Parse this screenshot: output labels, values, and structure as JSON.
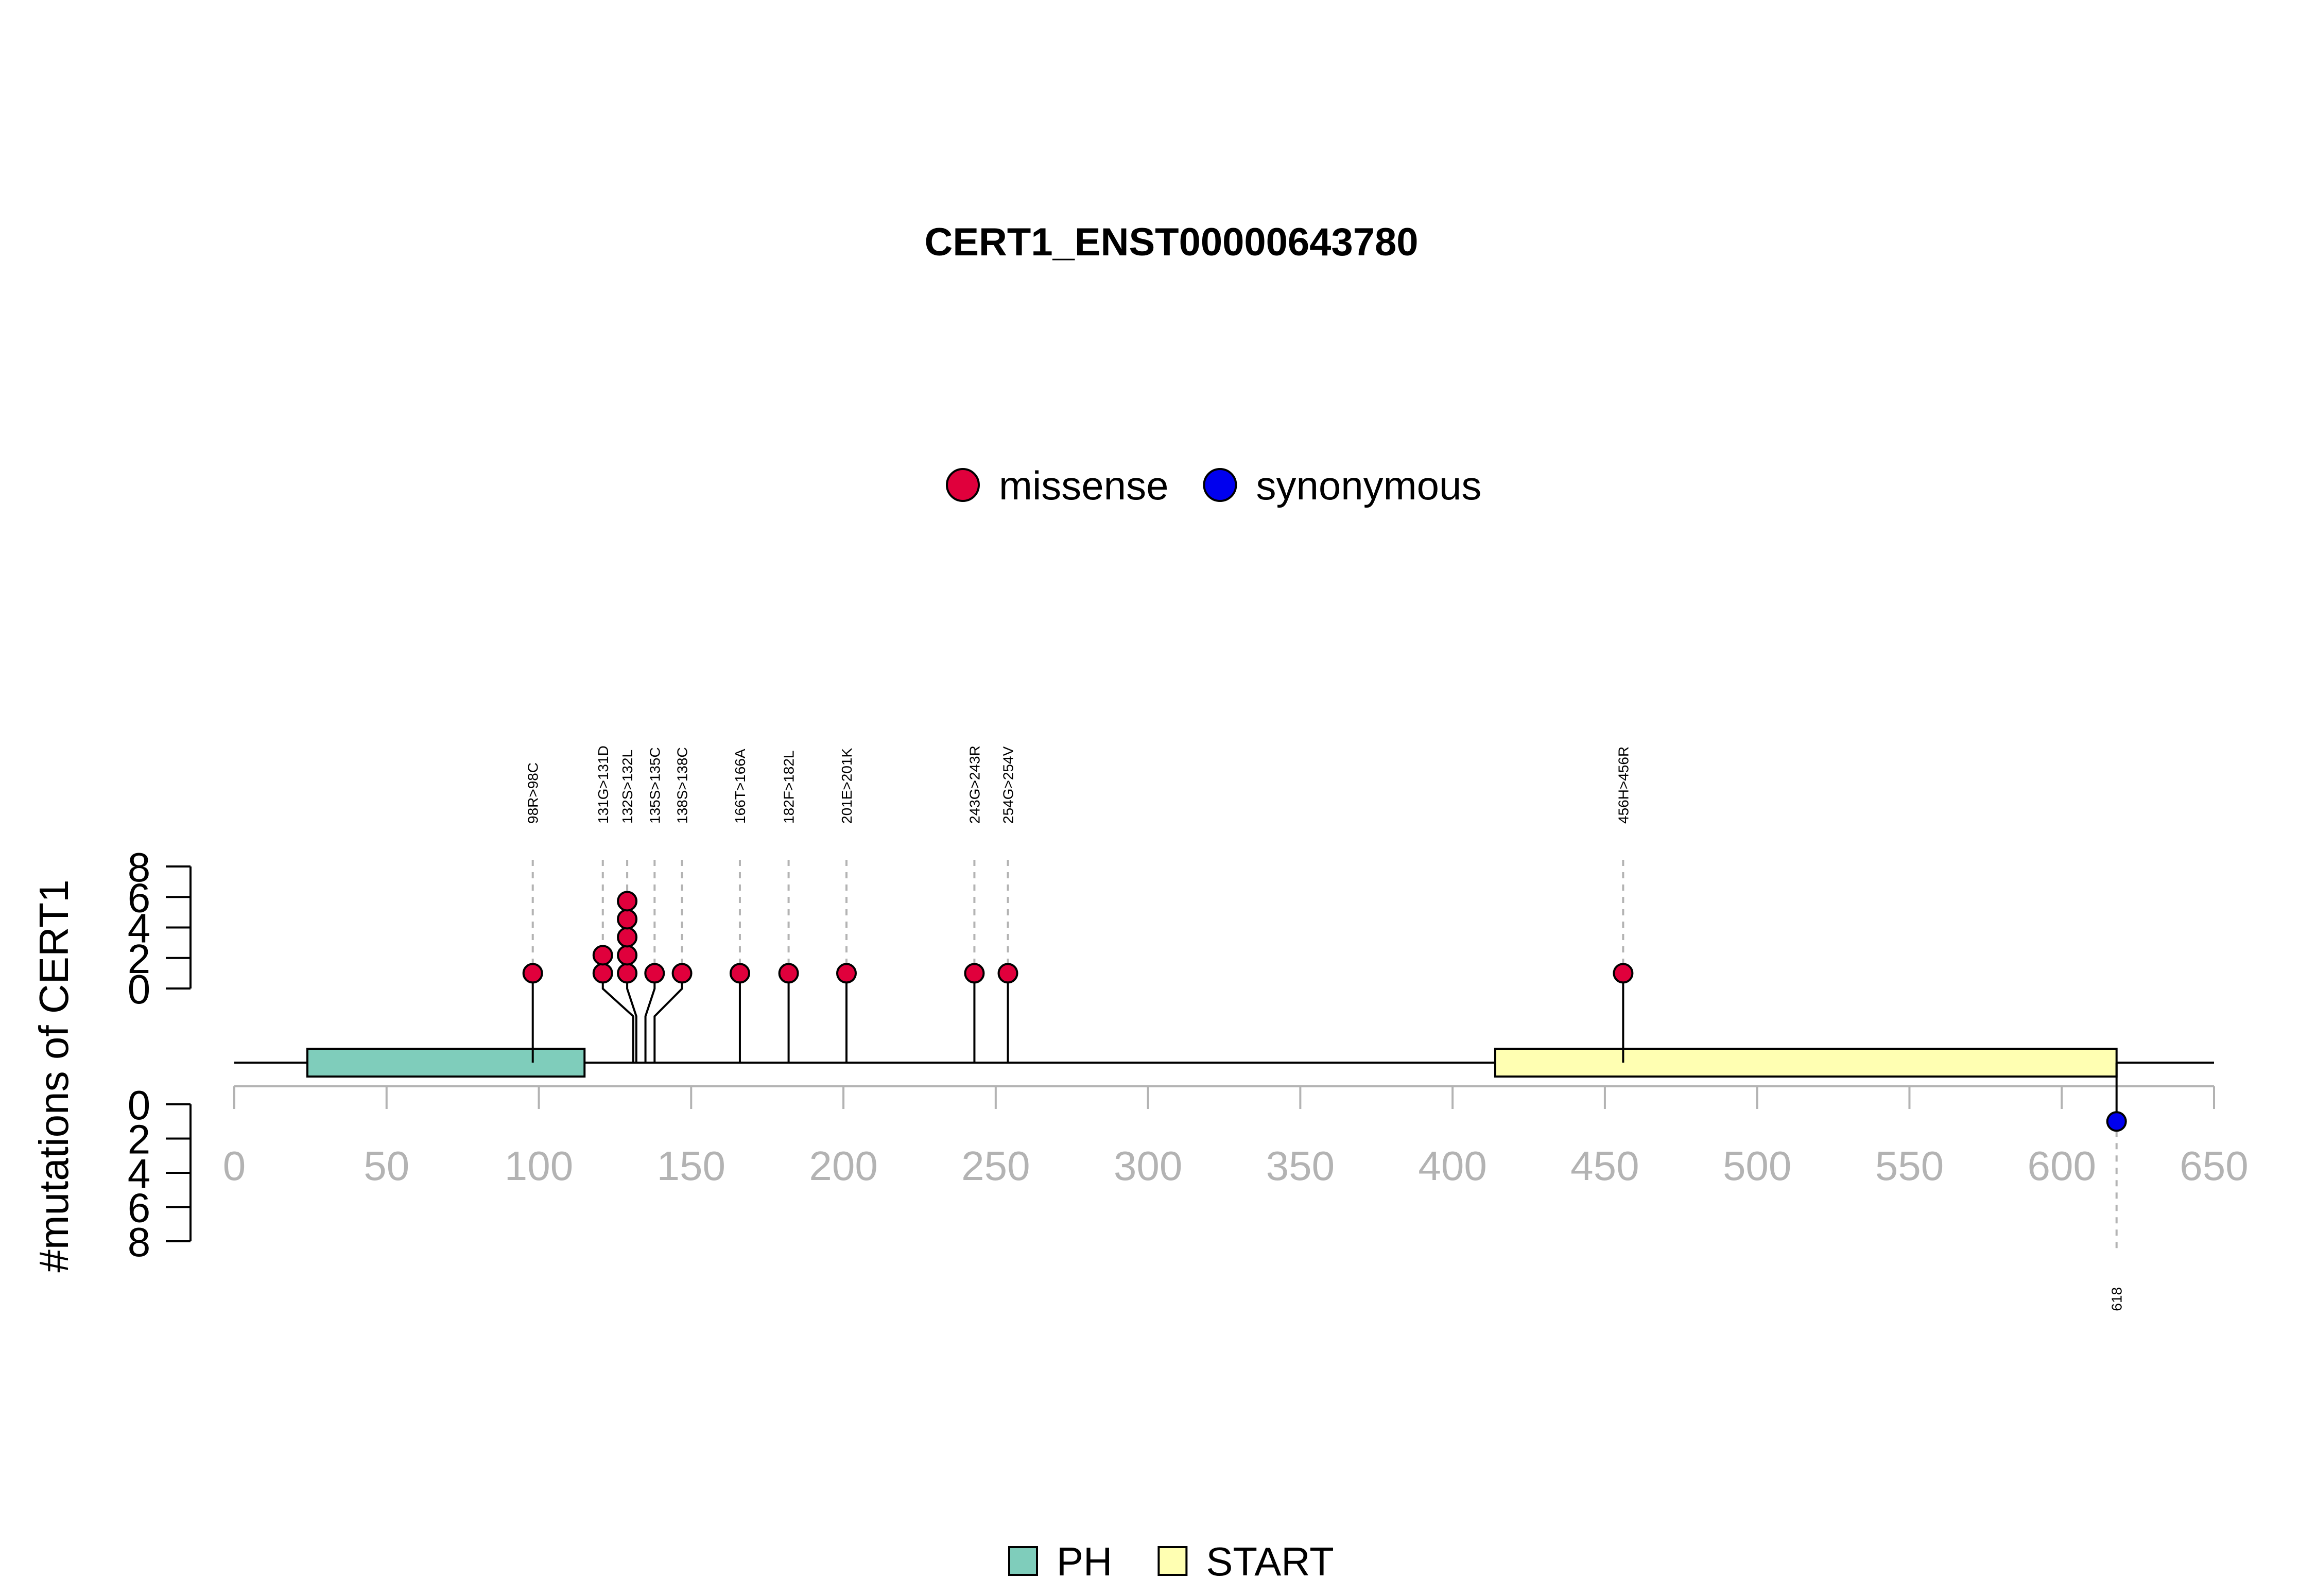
{
  "chart_data": {
    "type": "lollipop",
    "title": "CERT1_ENST00000643780",
    "ylabel": "#mutations of CERT1",
    "xlim": [
      0,
      650
    ],
    "x_ticks": [
      0,
      50,
      100,
      150,
      200,
      250,
      300,
      350,
      400,
      450,
      500,
      550,
      600,
      650
    ],
    "y_ticks_top": [
      0,
      2,
      4,
      6,
      8
    ],
    "y_ticks_bottom": [
      0,
      2,
      4,
      6,
      8
    ],
    "ylim": [
      0,
      8
    ],
    "protein_length": 650,
    "mutation_legend": [
      {
        "name": "missense",
        "color": "#E0003C"
      },
      {
        "name": "synonymous",
        "color": "#0000EE"
      }
    ],
    "domain_legend": [
      {
        "name": "PH",
        "color": "#7FCDBB"
      },
      {
        "name": "START",
        "color": "#FFFFB2"
      }
    ],
    "domains": [
      {
        "name": "PH",
        "start": 24,
        "end": 115,
        "color": "#7FCDBB"
      },
      {
        "name": "START",
        "start": 414,
        "end": 618,
        "color": "#FFFFB2"
      }
    ],
    "mutations": [
      {
        "label": "98R>98C",
        "position": 98,
        "count": 1,
        "type": "missense",
        "side": "top",
        "label_pos": 98
      },
      {
        "label": "131G>131D",
        "position": 131,
        "count": 2,
        "type": "missense",
        "side": "top",
        "label_pos": 121
      },
      {
        "label": "132S>132L",
        "position": 132,
        "count": 5,
        "type": "missense",
        "side": "top",
        "label_pos": 129
      },
      {
        "label": "135S>135C",
        "position": 135,
        "count": 1,
        "type": "missense",
        "side": "top",
        "label_pos": 138
      },
      {
        "label": "138S>138C",
        "position": 138,
        "count": 1,
        "type": "missense",
        "side": "top",
        "label_pos": 147
      },
      {
        "label": "166T>166A",
        "position": 166,
        "count": 1,
        "type": "missense",
        "side": "top",
        "label_pos": 166
      },
      {
        "label": "182F>182L",
        "position": 182,
        "count": 1,
        "type": "missense",
        "side": "top",
        "label_pos": 182
      },
      {
        "label": "201E>201K",
        "position": 201,
        "count": 1,
        "type": "missense",
        "side": "top",
        "label_pos": 201
      },
      {
        "label": "243G>243R",
        "position": 243,
        "count": 1,
        "type": "missense",
        "side": "top",
        "label_pos": 243
      },
      {
        "label": "254G>254V",
        "position": 254,
        "count": 1,
        "type": "missense",
        "side": "top",
        "label_pos": 254
      },
      {
        "label": "456H>456R",
        "position": 456,
        "count": 1,
        "type": "missense",
        "side": "top",
        "label_pos": 456
      },
      {
        "label": "618",
        "position": 618,
        "count": 1,
        "type": "synonymous",
        "side": "bottom",
        "label_pos": 618
      }
    ]
  }
}
